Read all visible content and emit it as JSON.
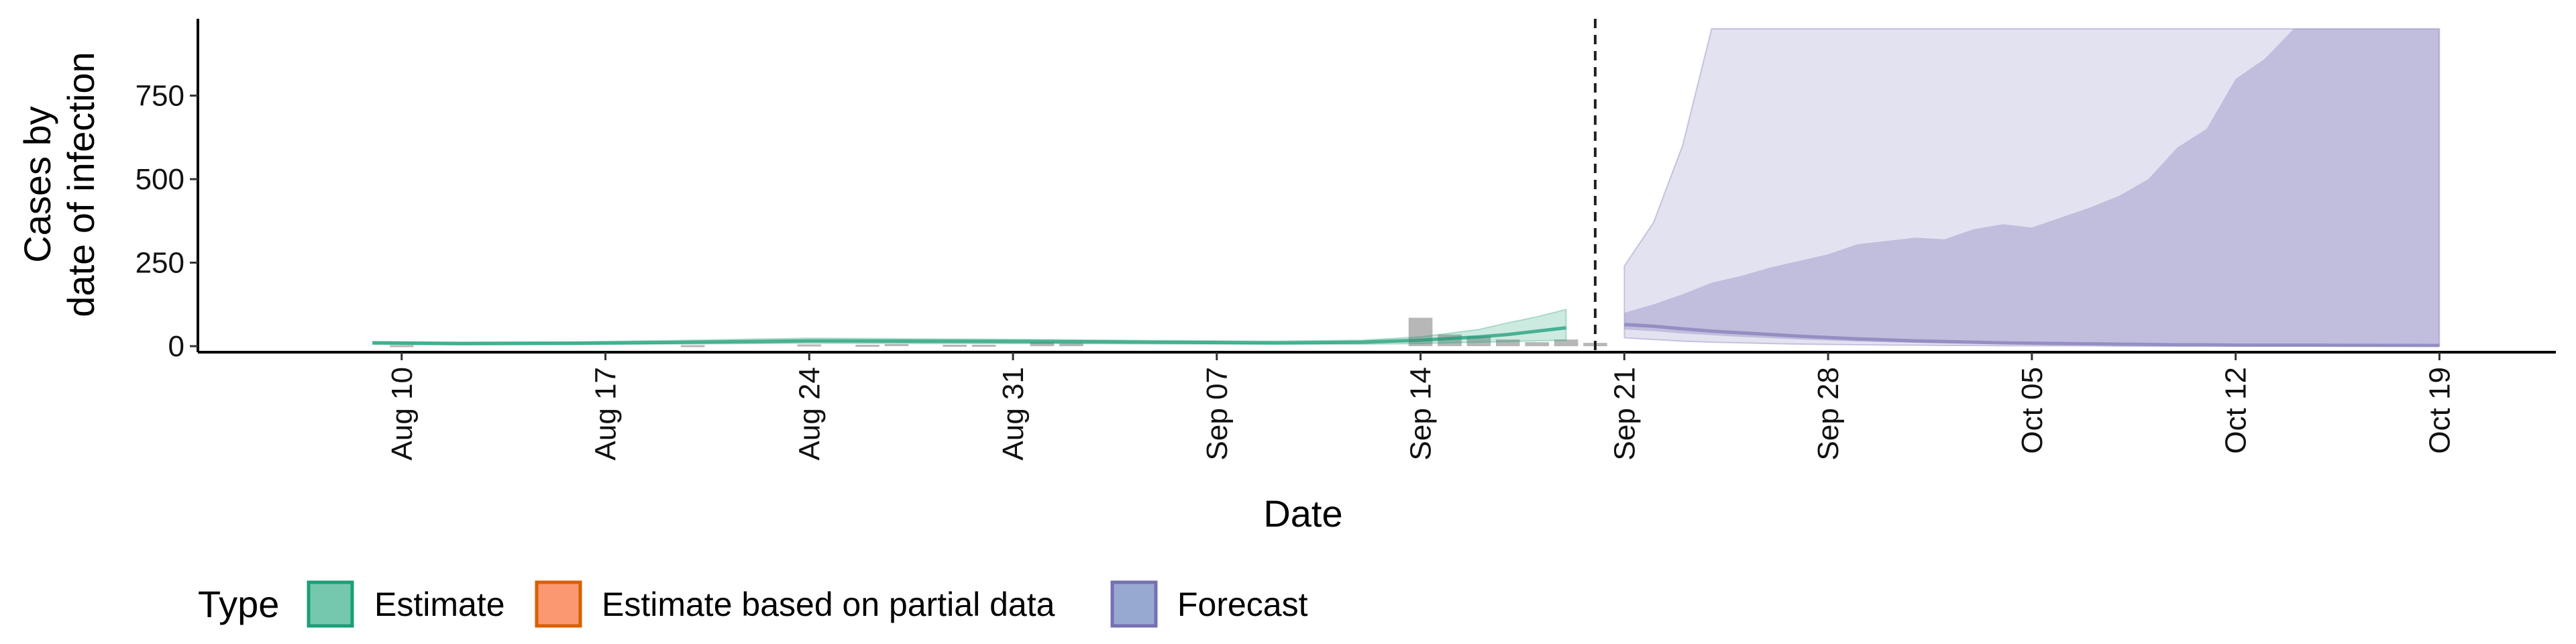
{
  "chart_data": {
    "type": "area",
    "xlabel": "Date",
    "ylabel_lines": [
      "Cases by",
      "date of infection"
    ],
    "ylim": [
      -18,
      980
    ],
    "y_ticks": [
      0,
      250,
      500,
      750
    ],
    "y_tick_labels": [
      "0",
      "250",
      "500",
      "750"
    ],
    "xlim": [
      "2020-08-03",
      "2020-10-23"
    ],
    "x_ticks": [
      "2020-08-10",
      "2020-08-17",
      "2020-08-24",
      "2020-08-31",
      "2020-09-07",
      "2020-09-14",
      "2020-09-21",
      "2020-09-28",
      "2020-10-05",
      "2020-10-12",
      "2020-10-19"
    ],
    "x_tick_labels": [
      "Aug 10",
      "Aug 17",
      "Aug 24",
      "Aug 31",
      "Sep 07",
      "Sep 14",
      "Sep 21",
      "Sep 28",
      "Oct 05",
      "Oct 12",
      "Oct 19"
    ],
    "vline_date": "2020-09-20",
    "grid": false,
    "legend": {
      "title": "Type",
      "position": "bottom",
      "items": [
        {
          "label": "Estimate",
          "fill": "#66c2a5",
          "stroke": "#1b9e77"
        },
        {
          "label": "Estimate based on partial data",
          "fill": "#fc8d62",
          "stroke": "#d95f02"
        },
        {
          "label": "Forecast",
          "fill": "#8da0cb",
          "stroke": "#7570b3"
        }
      ]
    },
    "colors": {
      "estimate": "#1b9e77",
      "forecast": "#7570b3",
      "reported": "#b3b3b3",
      "vline": "#222222"
    },
    "reported_cases": {
      "dates": [
        "2020-08-10",
        "2020-08-20",
        "2020-08-24",
        "2020-08-26",
        "2020-08-27",
        "2020-08-29",
        "2020-08-30",
        "2020-09-01",
        "2020-09-02",
        "2020-09-14",
        "2020-09-15",
        "2020-09-16",
        "2020-09-17",
        "2020-09-18",
        "2020-09-19",
        "2020-09-20"
      ],
      "values": [
        3,
        3,
        5,
        4,
        6,
        4,
        4,
        12,
        8,
        85,
        35,
        30,
        20,
        12,
        20,
        10
      ]
    },
    "series": [
      {
        "name": "Estimate",
        "dates": [
          "2020-08-09",
          "2020-08-12",
          "2020-08-16",
          "2020-08-20",
          "2020-08-24",
          "2020-08-28",
          "2020-09-01",
          "2020-09-05",
          "2020-09-09",
          "2020-09-12",
          "2020-09-14",
          "2020-09-16",
          "2020-09-17",
          "2020-09-18",
          "2020-09-19"
        ],
        "median": [
          10,
          8,
          9,
          12,
          16,
          15,
          14,
          12,
          10,
          12,
          18,
          28,
          35,
          45,
          55
        ],
        "lower_90": [
          6,
          4,
          5,
          7,
          9,
          8,
          8,
          7,
          6,
          6,
          8,
          12,
          14,
          16,
          18
        ],
        "upper_90": [
          14,
          12,
          13,
          18,
          24,
          22,
          20,
          17,
          15,
          18,
          28,
          50,
          70,
          88,
          110
        ]
      },
      {
        "name": "Forecast",
        "dates": [
          "2020-09-21",
          "2020-09-22",
          "2020-09-23",
          "2020-09-24",
          "2020-09-25",
          "2020-09-26",
          "2020-09-27",
          "2020-09-28",
          "2020-09-29",
          "2020-09-30",
          "2020-10-01",
          "2020-10-02",
          "2020-10-03",
          "2020-10-04",
          "2020-10-05",
          "2020-10-06",
          "2020-10-07",
          "2020-10-08",
          "2020-10-09",
          "2020-10-10",
          "2020-10-11",
          "2020-10-12",
          "2020-10-13",
          "2020-10-14",
          "2020-10-19"
        ],
        "median": [
          65,
          60,
          52,
          45,
          40,
          35,
          30,
          26,
          22,
          19,
          16,
          14,
          12,
          10,
          9,
          8,
          7,
          6,
          5,
          4,
          4,
          3,
          3,
          3,
          2
        ],
        "lower_50": [
          50,
          45,
          38,
          33,
          28,
          24,
          20,
          17,
          14,
          12,
          10,
          8,
          7,
          6,
          5,
          4,
          4,
          3,
          3,
          2,
          2,
          2,
          1,
          1,
          1
        ],
        "upper_50": [
          100,
          125,
          155,
          190,
          210,
          235,
          255,
          275,
          305,
          315,
          325,
          320,
          350,
          365,
          355,
          385,
          415,
          450,
          500,
          595,
          650,
          800,
          860,
          950,
          950
        ],
        "lower_90": [
          25,
          20,
          15,
          12,
          10,
          8,
          6,
          5,
          4,
          3,
          3,
          2,
          2,
          1,
          1,
          1,
          1,
          0,
          0,
          0,
          0,
          0,
          0,
          0,
          0
        ],
        "upper_90": [
          240,
          370,
          600,
          950,
          950,
          950,
          950,
          950,
          950,
          950,
          950,
          950,
          950,
          950,
          950,
          950,
          950,
          950,
          950,
          950,
          950,
          950,
          950,
          950,
          950
        ]
      }
    ]
  }
}
